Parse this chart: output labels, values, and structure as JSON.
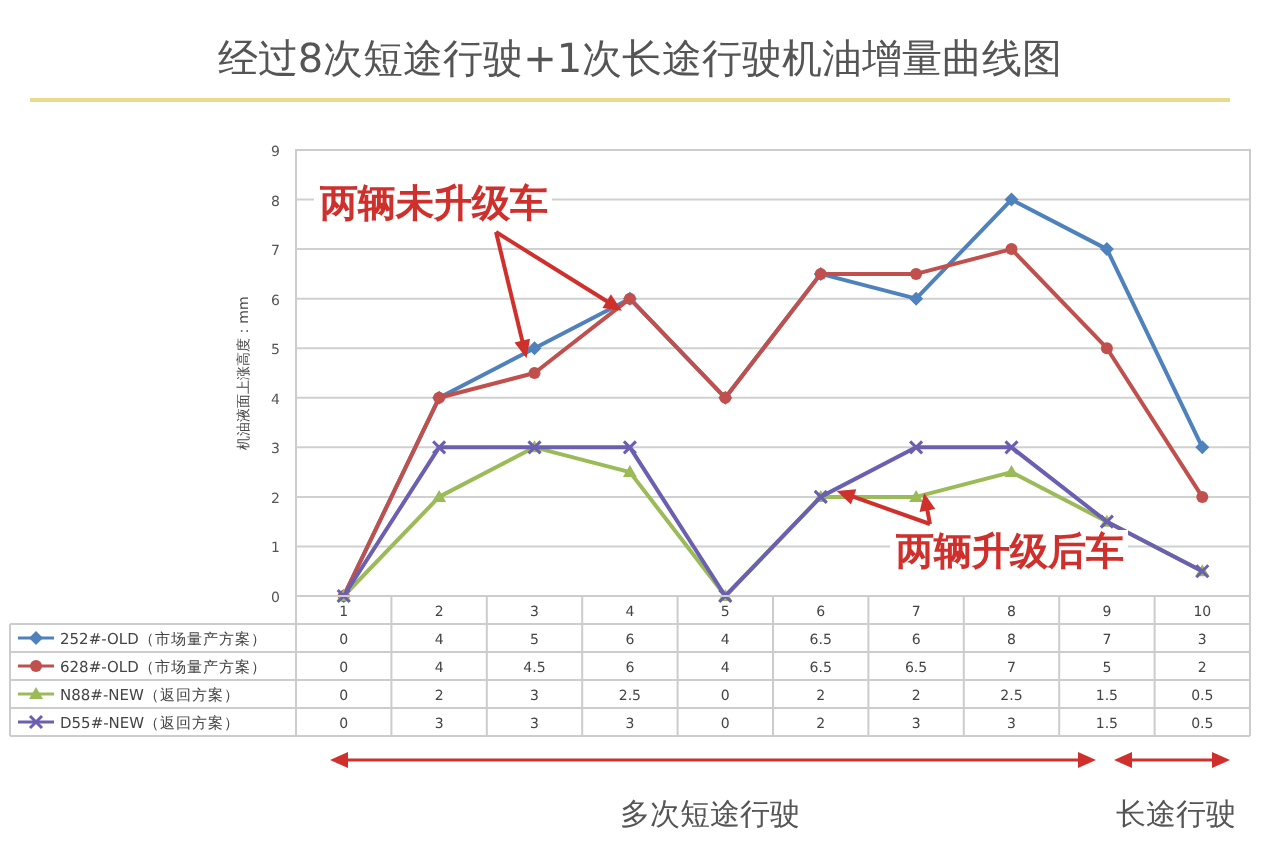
{
  "chart_data": {
    "type": "line",
    "title": "经过8次短途行驶+1次长途行驶机油增量曲线图",
    "ylabel": "机油液面上涨高度：mm",
    "categories": [
      "1",
      "2",
      "3",
      "4",
      "5",
      "6",
      "7",
      "8",
      "9",
      "10"
    ],
    "series": [
      {
        "name": "252#-OLD（市场量产方案）",
        "color": "#4f81bd",
        "marker": "diamond",
        "values": [
          0,
          4,
          5,
          6,
          4,
          6.5,
          6,
          8,
          7,
          3
        ]
      },
      {
        "name": "628#-OLD（市场量产方案）",
        "color": "#c0504d",
        "marker": "circle",
        "values": [
          0,
          4,
          4.5,
          6,
          4,
          6.5,
          6.5,
          7,
          5,
          2
        ]
      },
      {
        "name": "N88#-NEW（返回方案）",
        "color": "#9bbb59",
        "marker": "triangle",
        "values": [
          0,
          2,
          3,
          2.5,
          0,
          2,
          2,
          2.5,
          1.5,
          0.5
        ]
      },
      {
        "name": "D55#-NEW（返回方案）",
        "color": "#6a5fb0",
        "marker": "cross",
        "values": [
          0,
          3,
          3,
          3,
          0,
          2,
          3,
          3,
          1.5,
          0.5
        ]
      }
    ],
    "ylim": [
      0,
      9
    ],
    "yticks": [
      0,
      1,
      2,
      3,
      4,
      5,
      6,
      7,
      8,
      9
    ],
    "grid": "y",
    "legend": "bottom",
    "data_labels": true,
    "annotations": [
      {
        "text": "两辆未升级车",
        "x": "3",
        "y": 5
      },
      {
        "text": "两辆升级后车",
        "x": "7",
        "y": 2
      },
      "多次短途行驶",
      "长途行驶"
    ]
  }
}
